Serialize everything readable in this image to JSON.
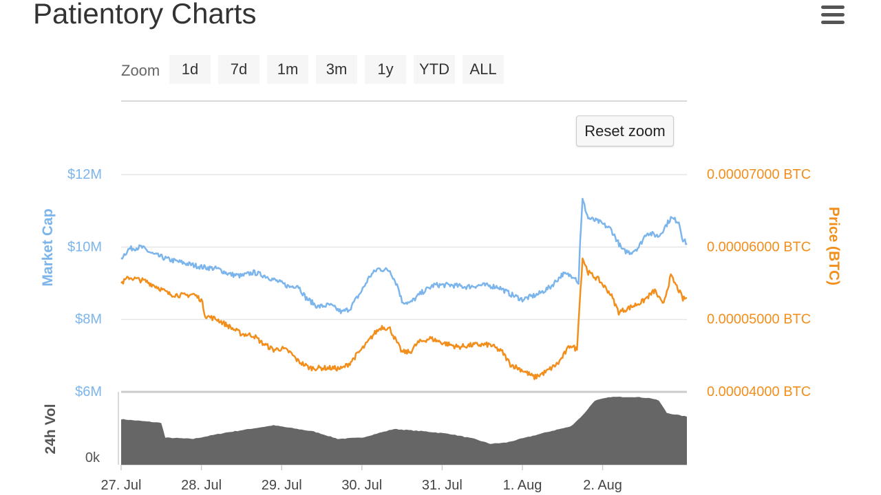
{
  "page": {
    "title": "Patientory Charts"
  },
  "toolbar": {
    "zoom_label": "Zoom",
    "ranges": [
      "1d",
      "7d",
      "1m",
      "3m",
      "1y",
      "YTD",
      "ALL"
    ],
    "reset_zoom_label": "Reset zoom"
  },
  "colors": {
    "market_cap": "#7cb5ec",
    "price": "#f7a35c",
    "price_line": "#f28f1c",
    "volume": "#666666",
    "grid": "#e6e6e6"
  },
  "chart_data": {
    "type": "line",
    "x_categories": [
      "27. Jul",
      "28. Jul",
      "29. Jul",
      "30. Jul",
      "31. Jul",
      "1. Aug",
      "2. Aug"
    ],
    "y_left": {
      "label": "Market Cap",
      "ticks": [
        "$12M",
        "$10M",
        "$8M",
        "$6M"
      ],
      "range": [
        6,
        12
      ],
      "unit": "M USD"
    },
    "y_right": {
      "label": "Price (BTC)",
      "ticks": [
        "0.00007000 BTC",
        "0.00006000 BTC",
        "0.00005000 BTC",
        "0.00004000 BTC"
      ],
      "range": [
        4e-05,
        7e-05
      ]
    },
    "volume_axis": {
      "label": "24h Vol",
      "ticks": [
        "0k"
      ]
    },
    "x_range_days": [
      0,
      7.05
    ],
    "series": [
      {
        "name": "Market Cap",
        "axis": "left",
        "points": [
          [
            0,
            9.7
          ],
          [
            0.1,
            9.95
          ],
          [
            0.25,
            10.0
          ],
          [
            0.4,
            9.8
          ],
          [
            0.6,
            9.65
          ],
          [
            0.8,
            9.55
          ],
          [
            1.0,
            9.45
          ],
          [
            1.2,
            9.4
          ],
          [
            1.35,
            9.25
          ],
          [
            1.5,
            9.2
          ],
          [
            1.65,
            9.3
          ],
          [
            1.8,
            9.2
          ],
          [
            2.0,
            9.0
          ],
          [
            2.1,
            8.9
          ],
          [
            2.2,
            8.95
          ],
          [
            2.3,
            8.6
          ],
          [
            2.45,
            8.35
          ],
          [
            2.6,
            8.4
          ],
          [
            2.75,
            8.2
          ],
          [
            2.85,
            8.3
          ],
          [
            3.0,
            8.8
          ],
          [
            3.1,
            9.2
          ],
          [
            3.2,
            9.4
          ],
          [
            3.35,
            9.35
          ],
          [
            3.45,
            8.9
          ],
          [
            3.5,
            8.5
          ],
          [
            3.6,
            8.45
          ],
          [
            3.75,
            8.75
          ],
          [
            3.9,
            8.95
          ],
          [
            4.1,
            8.95
          ],
          [
            4.3,
            8.9
          ],
          [
            4.5,
            8.95
          ],
          [
            4.7,
            8.9
          ],
          [
            4.85,
            8.7
          ],
          [
            5.0,
            8.55
          ],
          [
            5.2,
            8.7
          ],
          [
            5.35,
            8.9
          ],
          [
            5.5,
            9.25
          ],
          [
            5.65,
            9.2
          ],
          [
            5.7,
            9.0
          ],
          [
            5.72,
            10.2
          ],
          [
            5.75,
            11.3
          ],
          [
            5.82,
            10.8
          ],
          [
            5.95,
            10.7
          ],
          [
            6.1,
            10.5
          ],
          [
            6.25,
            9.9
          ],
          [
            6.35,
            9.85
          ],
          [
            6.45,
            10.0
          ],
          [
            6.55,
            10.4
          ],
          [
            6.7,
            10.3
          ],
          [
            6.85,
            10.8
          ],
          [
            6.95,
            10.7
          ],
          [
            7.0,
            10.2
          ],
          [
            7.05,
            10.1
          ]
        ]
      },
      {
        "name": "Price (BTC)",
        "axis": "right",
        "points": [
          [
            0,
            5.5e-05
          ],
          [
            0.1,
            5.58e-05
          ],
          [
            0.3,
            5.53e-05
          ],
          [
            0.45,
            5.45e-05
          ],
          [
            0.6,
            5.35e-05
          ],
          [
            0.8,
            5.33e-05
          ],
          [
            0.9,
            5.35e-05
          ],
          [
            1.0,
            5.27e-05
          ],
          [
            1.05,
            5.05e-05
          ],
          [
            1.2,
            5e-05
          ],
          [
            1.35,
            4.9e-05
          ],
          [
            1.5,
            4.8e-05
          ],
          [
            1.65,
            4.78e-05
          ],
          [
            1.75,
            4.68e-05
          ],
          [
            1.9,
            4.58e-05
          ],
          [
            2.0,
            4.6e-05
          ],
          [
            2.1,
            4.55e-05
          ],
          [
            2.2,
            4.43e-05
          ],
          [
            2.35,
            4.33e-05
          ],
          [
            2.5,
            4.33e-05
          ],
          [
            2.6,
            4.33e-05
          ],
          [
            2.75,
            4.32e-05
          ],
          [
            2.85,
            4.4e-05
          ],
          [
            2.95,
            4.53e-05
          ],
          [
            3.05,
            4.65e-05
          ],
          [
            3.15,
            4.8e-05
          ],
          [
            3.25,
            4.9e-05
          ],
          [
            3.35,
            4.87e-05
          ],
          [
            3.45,
            4.65e-05
          ],
          [
            3.5,
            4.55e-05
          ],
          [
            3.6,
            4.55e-05
          ],
          [
            3.7,
            4.68e-05
          ],
          [
            3.85,
            4.74e-05
          ],
          [
            4.0,
            4.68e-05
          ],
          [
            4.2,
            4.62e-05
          ],
          [
            4.4,
            4.65e-05
          ],
          [
            4.6,
            4.65e-05
          ],
          [
            4.75,
            4.55e-05
          ],
          [
            4.85,
            4.38e-05
          ],
          [
            5.0,
            4.3e-05
          ],
          [
            5.15,
            4.2e-05
          ],
          [
            5.3,
            4.28e-05
          ],
          [
            5.45,
            4.4e-05
          ],
          [
            5.6,
            4.65e-05
          ],
          [
            5.68,
            4.58e-05
          ],
          [
            5.7,
            5e-05
          ],
          [
            5.75,
            5.85e-05
          ],
          [
            5.82,
            5.65e-05
          ],
          [
            5.95,
            5.55e-05
          ],
          [
            6.1,
            5.35e-05
          ],
          [
            6.2,
            5.1e-05
          ],
          [
            6.35,
            5.17e-05
          ],
          [
            6.5,
            5.25e-05
          ],
          [
            6.65,
            5.4e-05
          ],
          [
            6.75,
            5.2e-05
          ],
          [
            6.85,
            5.6e-05
          ],
          [
            6.95,
            5.4e-05
          ],
          [
            7.0,
            5.28e-05
          ],
          [
            7.05,
            5.3e-05
          ]
        ]
      },
      {
        "name": "24h Vol",
        "axis": "volume",
        "relative_levels": [
          [
            0,
            0.37
          ],
          [
            0.5,
            0.34
          ],
          [
            0.55,
            0.22
          ],
          [
            0.9,
            0.21
          ],
          [
            1.3,
            0.26
          ],
          [
            1.6,
            0.29
          ],
          [
            1.9,
            0.32
          ],
          [
            2.1,
            0.3
          ],
          [
            2.4,
            0.27
          ],
          [
            2.7,
            0.21
          ],
          [
            3.0,
            0.22
          ],
          [
            3.4,
            0.29
          ],
          [
            3.8,
            0.27
          ],
          [
            4.1,
            0.25
          ],
          [
            4.4,
            0.21
          ],
          [
            4.6,
            0.17
          ],
          [
            4.8,
            0.18
          ],
          [
            5.1,
            0.23
          ],
          [
            5.4,
            0.28
          ],
          [
            5.6,
            0.31
          ],
          [
            5.75,
            0.4
          ],
          [
            5.9,
            0.52
          ],
          [
            6.1,
            0.55
          ],
          [
            6.4,
            0.55
          ],
          [
            6.6,
            0.54
          ],
          [
            6.7,
            0.52
          ],
          [
            6.8,
            0.42
          ],
          [
            7.05,
            0.39
          ]
        ]
      }
    ],
    "legend": "none",
    "grid": true
  }
}
